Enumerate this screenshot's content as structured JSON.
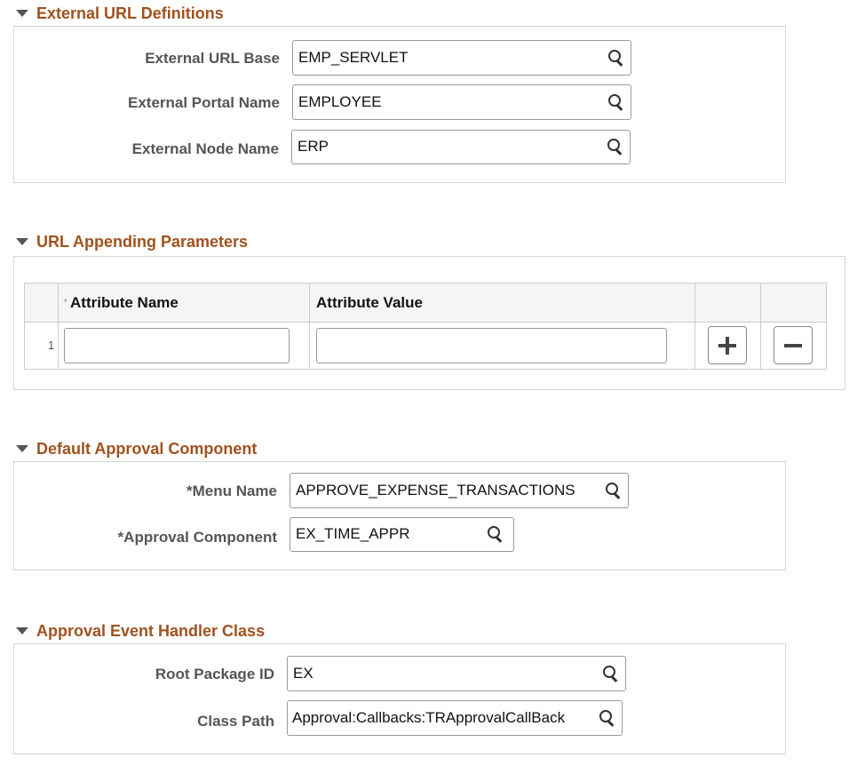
{
  "sections": {
    "external": {
      "title": "External URL Definitions",
      "fields": [
        {
          "label": "External URL Base",
          "value": "EMP_SERVLET"
        },
        {
          "label": "External Portal Name",
          "value": "EMPLOYEE"
        },
        {
          "label": "External Node Name",
          "value": "ERP"
        }
      ]
    },
    "params": {
      "title": "URL Appending Parameters",
      "columns": {
        "required_mark": "*",
        "name": "Attribute Name",
        "value": "Attribute Value"
      },
      "rows": [
        {
          "num": "1",
          "name": "",
          "value": ""
        }
      ],
      "add_icon": "plus-icon",
      "remove_icon": "minus-icon"
    },
    "approval": {
      "title": "Default Approval Component",
      "fields": [
        {
          "label": "*Menu Name",
          "value": "APPROVE_EXPENSE_TRANSACTIONS"
        },
        {
          "label": "*Approval Component",
          "value": "EX_TIME_APPR"
        }
      ]
    },
    "handler": {
      "title": "Approval Event Handler Class",
      "fields": [
        {
          "label": "Root Package ID",
          "value": "EX"
        },
        {
          "label": "Class Path",
          "value": "Approval:Callbacks:TRApprovalCallBack"
        }
      ]
    }
  },
  "colors": {
    "section_title": "#a0521e",
    "label": "#555555"
  }
}
